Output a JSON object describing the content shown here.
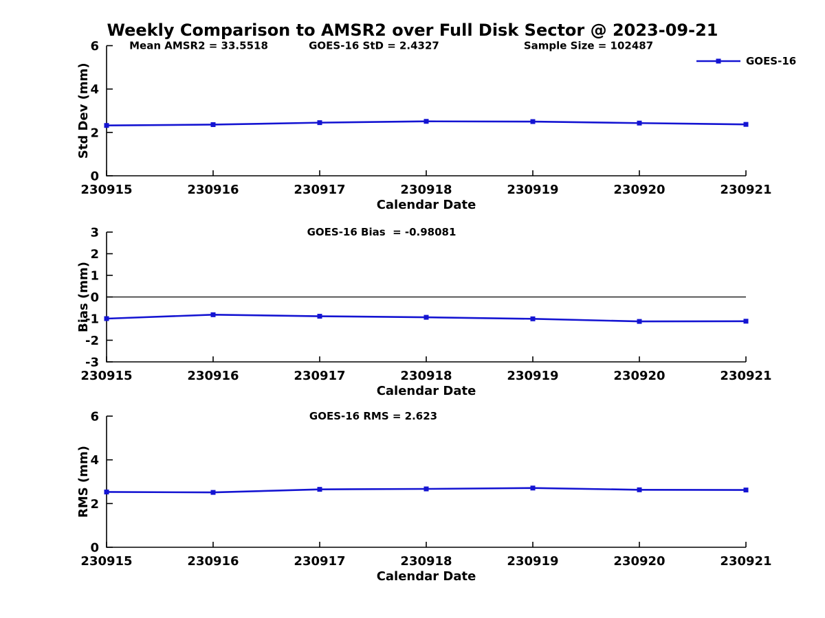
{
  "figure": {
    "title": "Weekly Comparison to AMSR2 over Full Disk Sector @ 2023-09-21",
    "background": "#ffffff",
    "text_color": "#000000"
  },
  "legend": {
    "label": "GOES-16",
    "line_color": "#1414d2",
    "marker": "filled-square"
  },
  "chart_data": [
    {
      "type": "line",
      "name": "stddev",
      "title": "",
      "xlabel": "Calendar Date",
      "ylabel": "Std Dev (mm)",
      "ylim": [
        0,
        6
      ],
      "yticks": [
        0,
        2,
        4,
        6
      ],
      "categories": [
        "230915",
        "230916",
        "230917",
        "230918",
        "230919",
        "230920",
        "230921"
      ],
      "series": [
        {
          "name": "GOES-16",
          "color": "#1414d2",
          "marker": "square",
          "values": [
            2.32,
            2.36,
            2.45,
            2.51,
            2.5,
            2.43,
            2.37
          ]
        }
      ],
      "annotations": [
        "Mean AMSR2 = 33.5518",
        "GOES-16 StD = 2.4327",
        "Sample Size = 102487"
      ],
      "legend_entries": [
        "GOES-16"
      ],
      "legend_position": "top-right",
      "grid": false,
      "zero_line": false
    },
    {
      "type": "line",
      "name": "bias",
      "title": "",
      "xlabel": "Calendar Date",
      "ylabel": "Bias (mm)",
      "ylim": [
        -3,
        3
      ],
      "yticks": [
        3,
        2,
        1,
        0,
        -1,
        -2,
        -3
      ],
      "categories": [
        "230915",
        "230916",
        "230917",
        "230918",
        "230919",
        "230920",
        "230921"
      ],
      "series": [
        {
          "name": "GOES-16",
          "color": "#1414d2",
          "marker": "square",
          "values": [
            -1.0,
            -0.82,
            -0.89,
            -0.94,
            -1.01,
            -1.13,
            -1.12
          ]
        }
      ],
      "annotations": [
        "GOES-16 Bias  = -0.98081"
      ],
      "grid": false,
      "zero_line": true
    },
    {
      "type": "line",
      "name": "rms",
      "title": "",
      "xlabel": "Calendar Date",
      "ylabel": "RMS (mm)",
      "ylim": [
        0,
        6
      ],
      "yticks": [
        0,
        2,
        4,
        6
      ],
      "categories": [
        "230915",
        "230916",
        "230917",
        "230918",
        "230919",
        "230920",
        "230921"
      ],
      "series": [
        {
          "name": "GOES-16",
          "color": "#1414d2",
          "marker": "square",
          "values": [
            2.53,
            2.51,
            2.65,
            2.67,
            2.71,
            2.63,
            2.62
          ]
        }
      ],
      "annotations": [
        "GOES-16 RMS = 2.623"
      ],
      "grid": false,
      "zero_line": false
    }
  ]
}
